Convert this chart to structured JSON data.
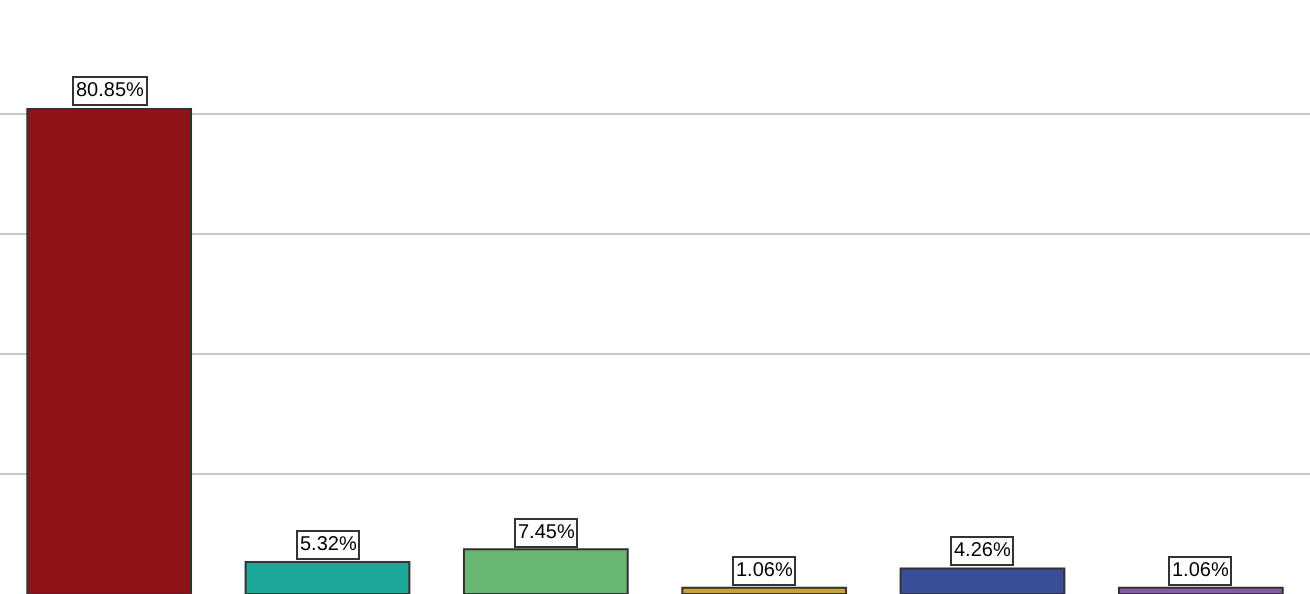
{
  "chart_data": {
    "type": "bar",
    "categories": [
      null,
      null,
      null,
      null,
      null,
      null
    ],
    "values": [
      80.85,
      5.32,
      7.45,
      1.06,
      4.26,
      1.06
    ],
    "value_labels": [
      "80.85%",
      "5.32%",
      "7.45%",
      "1.06%",
      "4.26%",
      "1.06%"
    ],
    "colors": [
      "#8e1418",
      "#1ba89a",
      "#69b572",
      "#c9a23a",
      "#3a4f9a",
      "#8a5aa8"
    ],
    "ylim": [
      0,
      99
    ],
    "yticks": [
      {
        "value": 20,
        "label": null
      },
      {
        "value": 40,
        "label": null
      },
      {
        "value": 60,
        "label": null
      },
      {
        "value": 80,
        "label": null
      }
    ],
    "grid": "y"
  }
}
